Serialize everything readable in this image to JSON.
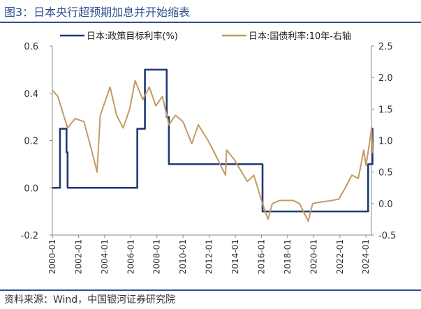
{
  "figure": {
    "title": "图3：日本央行超预期加息并开始缩表",
    "source": "资料来源：Wind，中国银河证券研究院"
  },
  "chart_data": {
    "type": "line",
    "x_ticks": [
      "2000-01",
      "2002-01",
      "2004-01",
      "2006-01",
      "2008-01",
      "2010-01",
      "2012-01",
      "2014-01",
      "2016-01",
      "2018-01",
      "2020-01",
      "2022-01",
      "2024-01"
    ],
    "xlim": [
      "2000-01",
      "2024-06"
    ],
    "y_left": {
      "lim": [
        -0.2,
        0.6
      ],
      "ticks": [
        "-0.2",
        "0.0",
        "0.2",
        "0.4",
        "0.6"
      ]
    },
    "y_right": {
      "lim": [
        -0.5,
        2.5
      ],
      "ticks": [
        "-0.5",
        "0.0",
        "0.5",
        "1.0",
        "1.5",
        "2.0",
        "2.5"
      ]
    },
    "legend_position": "top",
    "colors": {
      "policy": "#1f3a7a",
      "jgb": "#c39a62"
    },
    "series": [
      {
        "name": "日本:政策目标利率(%)",
        "axis": "left",
        "step": true,
        "points": [
          [
            "2000-01",
            0.0
          ],
          [
            "2000-08",
            0.25
          ],
          [
            "2001-02",
            0.15
          ],
          [
            "2001-03",
            0.0
          ],
          [
            "2006-07",
            0.25
          ],
          [
            "2007-02",
            0.5
          ],
          [
            "2008-10",
            0.3
          ],
          [
            "2008-12",
            0.1
          ],
          [
            "2016-02",
            -0.1
          ],
          [
            "2024-03",
            0.1
          ],
          [
            "2024-07",
            0.25
          ]
        ]
      },
      {
        "name": "日本:国债利率:10年-右轴",
        "axis": "right",
        "points": [
          [
            "2000-01",
            1.8
          ],
          [
            "2000-06",
            1.7
          ],
          [
            "2001-03",
            1.2
          ],
          [
            "2001-10",
            1.35
          ],
          [
            "2002-06",
            1.3
          ],
          [
            "2003-01",
            0.85
          ],
          [
            "2003-06",
            0.5
          ],
          [
            "2003-09",
            1.4
          ],
          [
            "2004-06",
            1.85
          ],
          [
            "2004-12",
            1.4
          ],
          [
            "2005-06",
            1.2
          ],
          [
            "2005-12",
            1.5
          ],
          [
            "2006-05",
            1.95
          ],
          [
            "2006-12",
            1.65
          ],
          [
            "2007-06",
            1.85
          ],
          [
            "2007-12",
            1.55
          ],
          [
            "2008-06",
            1.7
          ],
          [
            "2008-12",
            1.25
          ],
          [
            "2009-06",
            1.4
          ],
          [
            "2010-01",
            1.3
          ],
          [
            "2010-09",
            0.95
          ],
          [
            "2011-03",
            1.25
          ],
          [
            "2011-12",
            1.0
          ],
          [
            "2012-06",
            0.8
          ],
          [
            "2013-04",
            0.45
          ],
          [
            "2013-05",
            0.85
          ],
          [
            "2013-12",
            0.7
          ],
          [
            "2014-12",
            0.35
          ],
          [
            "2015-06",
            0.45
          ],
          [
            "2016-02",
            0.0
          ],
          [
            "2016-07",
            -0.25
          ],
          [
            "2016-11",
            0.0
          ],
          [
            "2017-06",
            0.05
          ],
          [
            "2018-06",
            0.05
          ],
          [
            "2018-12",
            0.0
          ],
          [
            "2019-08",
            -0.28
          ],
          [
            "2019-12",
            0.0
          ],
          [
            "2020-06",
            0.02
          ],
          [
            "2021-06",
            0.05
          ],
          [
            "2021-12",
            0.07
          ],
          [
            "2022-06",
            0.25
          ],
          [
            "2022-12",
            0.45
          ],
          [
            "2023-06",
            0.4
          ],
          [
            "2023-11",
            0.85
          ],
          [
            "2024-01",
            0.6
          ],
          [
            "2024-05",
            1.05
          ],
          [
            "2024-06",
            1.2
          ],
          [
            "2024-07",
            0.8
          ]
        ]
      }
    ]
  }
}
